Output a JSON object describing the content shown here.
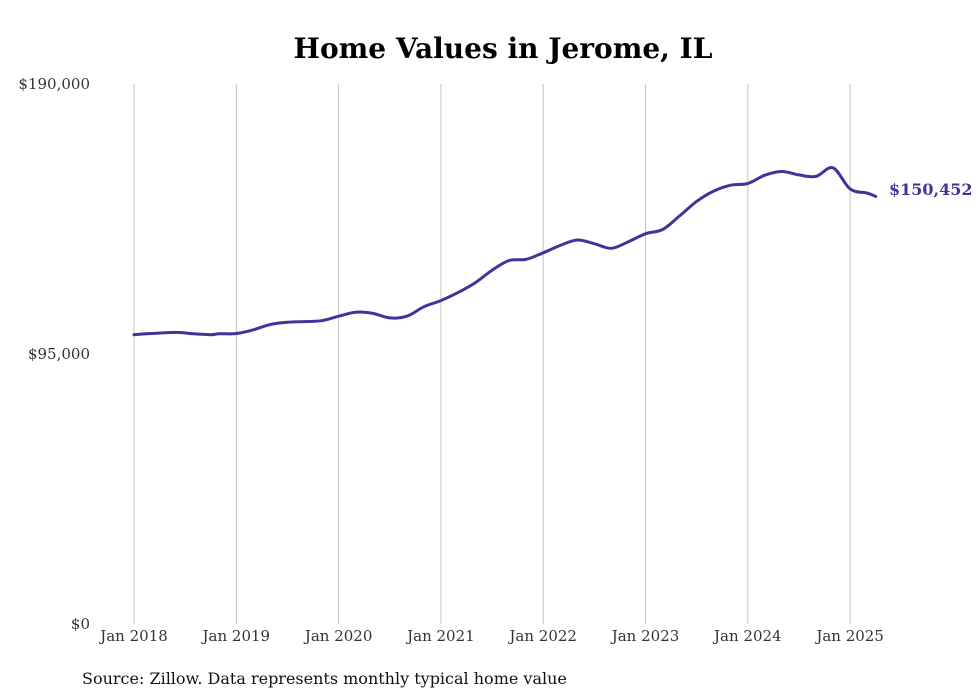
{
  "chart_data": {
    "type": "line",
    "title": "Home Values in Jerome, IL",
    "source_note": "Source: Zillow. Data represents monthly typical home value",
    "ylim": [
      0,
      190000
    ],
    "y_ticks": [
      {
        "value": 0,
        "label": "$0"
      },
      {
        "value": 95000,
        "label": "$95,000"
      },
      {
        "value": 190000,
        "label": "$190,000"
      }
    ],
    "x_ticks": [
      {
        "value": 2018,
        "label": "Jan 2018"
      },
      {
        "value": 2019,
        "label": "Jan 2019"
      },
      {
        "value": 2020,
        "label": "Jan 2020"
      },
      {
        "value": 2021,
        "label": "Jan 2021"
      },
      {
        "value": 2022,
        "label": "Jan 2022"
      },
      {
        "value": 2023,
        "label": "Jan 2023"
      },
      {
        "value": 2024,
        "label": "Jan 2024"
      },
      {
        "value": 2025,
        "label": "Jan 2025"
      }
    ],
    "grid": "vertical",
    "end_label": "$150,452",
    "line_color": "#40349a",
    "series": [
      {
        "x": [
          "2018-01",
          "2018-03",
          "2018-06",
          "2018-08",
          "2018-10",
          "2018-11",
          "2019-01",
          "2019-03",
          "2019-05",
          "2019-07",
          "2019-09",
          "2019-11",
          "2020-01",
          "2020-03",
          "2020-05",
          "2020-07",
          "2020-09",
          "2020-11",
          "2021-01",
          "2021-03",
          "2021-05",
          "2021-07",
          "2021-09",
          "2021-11",
          "2022-01",
          "2022-03",
          "2022-05",
          "2022-07",
          "2022-09",
          "2022-11",
          "2023-01",
          "2023-03",
          "2023-05",
          "2023-07",
          "2023-09",
          "2023-11",
          "2024-01",
          "2024-03",
          "2024-05",
          "2024-07",
          "2024-09",
          "2024-11",
          "2025-01",
          "2025-03",
          "2025-04"
        ],
        "values": [
          101800,
          102200,
          102600,
          102100,
          101800,
          102100,
          102200,
          103500,
          105400,
          106200,
          106400,
          106700,
          108300,
          109700,
          109300,
          107700,
          108300,
          111600,
          113800,
          116600,
          120000,
          124500,
          127900,
          128300,
          130600,
          133200,
          135100,
          133800,
          132200,
          134500,
          137300,
          138800,
          143600,
          148700,
          152300,
          154400,
          155000,
          157900,
          159200,
          158000,
          157500,
          160500,
          153100,
          151600,
          150452
        ]
      }
    ]
  }
}
